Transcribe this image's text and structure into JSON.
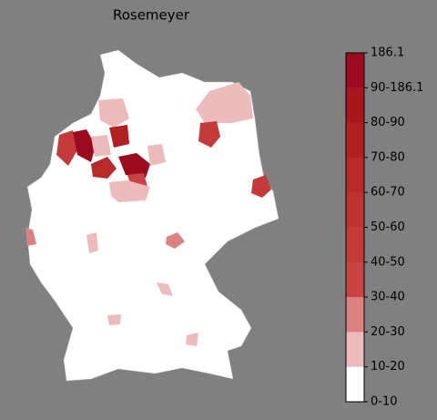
{
  "title": "Rosemeyer",
  "colorbar": {
    "labels": [
      "186.1",
      "90-186.1",
      "80-90",
      "70-80",
      "60-70",
      "50-60",
      "40-50",
      "30-40",
      "20-30",
      "10-20",
      "0-10"
    ],
    "colors": [
      "#9b0a1e",
      "#a8161e",
      "#b01f22",
      "#b82a2a",
      "#bf3232",
      "#c43a3a",
      "#c94444",
      "#dc8181",
      "#ecbcbc",
      "#ffffff"
    ]
  }
}
